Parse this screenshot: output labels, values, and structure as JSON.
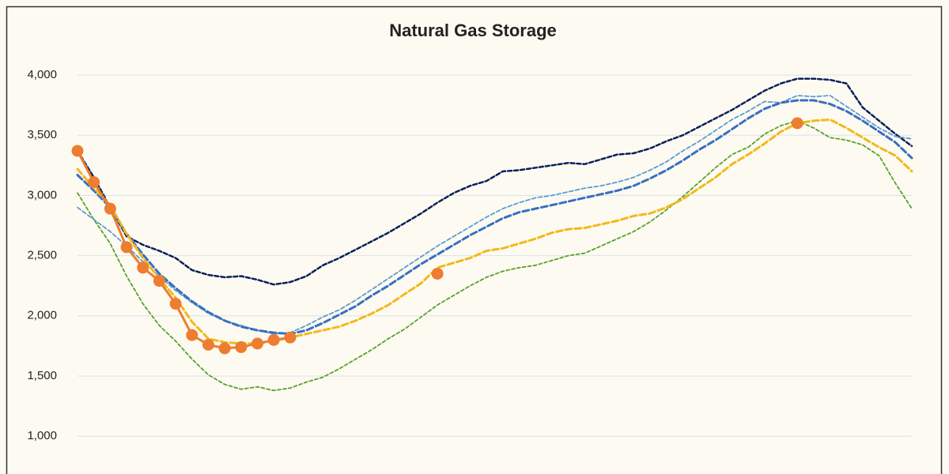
{
  "chart_data": {
    "type": "line",
    "title": "Natural Gas Storage",
    "ylim": [
      700,
      4200
    ],
    "yticks": [
      {
        "value": 1000,
        "label": "1,000"
      },
      {
        "value": 1500,
        "label": "1,500"
      },
      {
        "value": 2000,
        "label": "2,000"
      },
      {
        "value": 2500,
        "label": "2,500"
      },
      {
        "value": 3000,
        "label": "3,000"
      },
      {
        "value": 3500,
        "label": "3,500"
      },
      {
        "value": 4000,
        "label": "4,000"
      }
    ],
    "grid": true,
    "series": [
      {
        "color": "#0b1f5c",
        "dashed": true,
        "values": [
          3370,
          3150,
          2900,
          2660,
          2590,
          2540,
          2480,
          2380,
          2340,
          2320,
          2330,
          2300,
          2260,
          2280,
          2330,
          2420,
          2480,
          2550,
          2620,
          2690,
          2770,
          2850,
          2940,
          3020,
          3080,
          3120,
          3200,
          3210,
          3230,
          3250,
          3270,
          3260,
          3300,
          3340,
          3350,
          3390,
          3450,
          3500,
          3570,
          3640,
          3710,
          3790,
          3870,
          3930,
          3970,
          3970,
          3960,
          3930,
          3730,
          3620,
          3510,
          3410
        ]
      },
      {
        "color": "#5aa02c",
        "dashed": true,
        "values": [
          3020,
          2800,
          2600,
          2330,
          2100,
          1920,
          1790,
          1640,
          1510,
          1430,
          1390,
          1410,
          1380,
          1400,
          1450,
          1490,
          1560,
          1640,
          1720,
          1810,
          1890,
          1990,
          2090,
          2170,
          2250,
          2320,
          2370,
          2400,
          2420,
          2460,
          2500,
          2520,
          2580,
          2640,
          2700,
          2780,
          2880,
          2990,
          3110,
          3230,
          3340,
          3400,
          3510,
          3580,
          3620,
          3560,
          3480,
          3460,
          3420,
          3330,
          3100,
          2890
        ]
      },
      {
        "color": "#5b9bd5",
        "dashed": true,
        "values": [
          2900,
          2800,
          2700,
          2580,
          2450,
          2330,
          2210,
          2110,
          2020,
          1960,
          1920,
          1880,
          1850,
          1860,
          1920,
          1990,
          2050,
          2130,
          2220,
          2310,
          2400,
          2490,
          2580,
          2660,
          2740,
          2820,
          2890,
          2940,
          2980,
          3000,
          3030,
          3060,
          3080,
          3110,
          3150,
          3210,
          3280,
          3370,
          3450,
          3540,
          3630,
          3700,
          3780,
          3770,
          3830,
          3820,
          3830,
          3740,
          3650,
          3560,
          3490,
          3470
        ]
      },
      {
        "color": "#3a6fc0",
        "dashed": true,
        "values": [
          3170,
          3040,
          2900,
          2680,
          2510,
          2350,
          2230,
          2120,
          2030,
          1960,
          1910,
          1880,
          1860,
          1850,
          1880,
          1940,
          2010,
          2080,
          2170,
          2250,
          2340,
          2430,
          2510,
          2590,
          2670,
          2740,
          2810,
          2860,
          2890,
          2920,
          2950,
          2980,
          3010,
          3040,
          3080,
          3140,
          3210,
          3290,
          3380,
          3460,
          3550,
          3640,
          3720,
          3770,
          3790,
          3790,
          3760,
          3700,
          3620,
          3530,
          3440,
          3310
        ]
      },
      {
        "color": "#f2b81c",
        "dashed": true,
        "values": [
          3220,
          3060,
          2920,
          2680,
          2480,
          2310,
          2150,
          1950,
          1810,
          1780,
          1770,
          1770,
          1790,
          1820,
          1850,
          1880,
          1910,
          1960,
          2020,
          2090,
          2180,
          2270,
          2400,
          2440,
          2480,
          2540,
          2560,
          2600,
          2640,
          2690,
          2720,
          2730,
          2760,
          2790,
          2830,
          2850,
          2900,
          2970,
          3060,
          3150,
          3260,
          3340,
          3430,
          3530,
          3600,
          3620,
          3630,
          3560,
          3480,
          3400,
          3330,
          3200
        ]
      },
      {
        "color": "#ed7d31",
        "dashed": false,
        "markers": true,
        "values": [
          3370,
          3110,
          2890,
          2570,
          2400,
          2290,
          2100,
          1840,
          1760,
          1730,
          1740,
          1770,
          1800,
          1820,
          null,
          null,
          null,
          null,
          null,
          null,
          null,
          null,
          2350,
          null,
          null,
          null,
          null,
          null,
          null,
          null,
          null,
          null,
          null,
          null,
          null,
          null,
          null,
          null,
          null,
          null,
          null,
          null,
          null,
          null,
          3600,
          null,
          null,
          null,
          null,
          null,
          null,
          null
        ]
      }
    ]
  }
}
